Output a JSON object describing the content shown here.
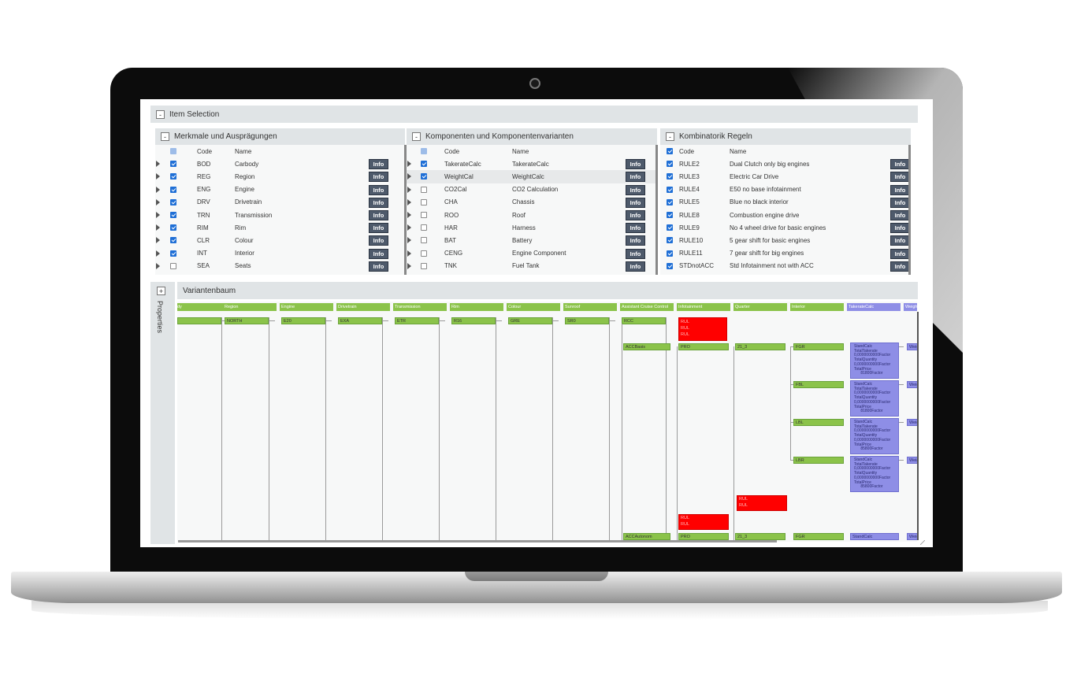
{
  "item_selection": {
    "title": "Item Selection",
    "toggle": "-"
  },
  "features": {
    "title": "Merkmale und Ausprägungen",
    "toggle": "-",
    "header": {
      "code": "Code",
      "name": "Name"
    },
    "rows": [
      {
        "code": "BOD",
        "name": "Carbody",
        "checked": true,
        "info": "Info"
      },
      {
        "code": "REG",
        "name": "Region",
        "checked": true,
        "info": "Info"
      },
      {
        "code": "ENG",
        "name": "Engine",
        "checked": true,
        "info": "Info"
      },
      {
        "code": "DRV",
        "name": "Drivetrain",
        "checked": true,
        "info": "Info"
      },
      {
        "code": "TRN",
        "name": "Transmission",
        "checked": true,
        "info": "Info"
      },
      {
        "code": "RIM",
        "name": "Rim",
        "checked": true,
        "info": "Info"
      },
      {
        "code": "CLR",
        "name": "Colour",
        "checked": true,
        "info": "Info"
      },
      {
        "code": "INT",
        "name": "Interior",
        "checked": true,
        "info": "Info"
      },
      {
        "code": "SEA",
        "name": "Seats",
        "checked": false,
        "info": "Info"
      }
    ]
  },
  "components": {
    "title": "Komponenten und Komponentenvarianten",
    "toggle": "-",
    "header": {
      "code": "Code",
      "name": "Name"
    },
    "rows": [
      {
        "code": "TakerateCalc",
        "name": "TakerateCalc",
        "checked": true,
        "info": "Info"
      },
      {
        "code": "WeightCal",
        "name": "WeightCalc",
        "checked": true,
        "info": "Info"
      },
      {
        "code": "CO2Cal",
        "name": "CO2 Calculation",
        "checked": false,
        "info": "Info"
      },
      {
        "code": "CHA",
        "name": "Chassis",
        "checked": false,
        "info": "Info"
      },
      {
        "code": "ROO",
        "name": "Roof",
        "checked": false,
        "info": "Info"
      },
      {
        "code": "HAR",
        "name": "Harness",
        "checked": false,
        "info": "Info"
      },
      {
        "code": "BAT",
        "name": "Battery",
        "checked": false,
        "info": "Info"
      },
      {
        "code": "CENG",
        "name": "Engine Component",
        "checked": false,
        "info": "Info"
      },
      {
        "code": "TNK",
        "name": "Fuel Tank",
        "checked": false,
        "info": "Info"
      }
    ]
  },
  "rules": {
    "title": "Kombinatorik Regeln",
    "toggle": "-",
    "header": {
      "code": "Code",
      "name": "Name"
    },
    "rows": [
      {
        "code": "RULE2",
        "name": "Dual Clutch only big engines",
        "checked": true,
        "info": "Info"
      },
      {
        "code": "RULE3",
        "name": "Electric Car Drive",
        "checked": true,
        "info": "Info"
      },
      {
        "code": "RULE4",
        "name": "E50 no base infotainment",
        "checked": true,
        "info": "Info"
      },
      {
        "code": "RULE5",
        "name": "Blue no black interior",
        "checked": true,
        "info": "Info"
      },
      {
        "code": "RULE8",
        "name": "Combustion engine drive",
        "checked": true,
        "info": "Info"
      },
      {
        "code": "RULE9",
        "name": "No 4 wheel drive for basic engines",
        "checked": true,
        "info": "Info"
      },
      {
        "code": "RULE10",
        "name": "5 gear shift for basic engines",
        "checked": true,
        "info": "Info"
      },
      {
        "code": "RULE11",
        "name": "7 gear shift for big engines",
        "checked": true,
        "info": "Info"
      },
      {
        "code": "STDnotACC",
        "name": "Std Infotainment not with ACC",
        "checked": true,
        "info": "Info"
      }
    ]
  },
  "properties": {
    "toggle": "+",
    "label": "Properties"
  },
  "tree": {
    "title": "Variantenbaum",
    "columns": [
      "dy",
      "Region",
      "Engine",
      "Drivetrain",
      "Transmission",
      "Rim",
      "Colour",
      "Sunroof",
      "Assistant Cruise Control",
      "Infotainment",
      "Quarter",
      "Interior",
      "TakerateCalc",
      "Weight"
    ],
    "colors": {
      "feature": "#8bc34a",
      "component": "#8e8ee6",
      "rule_violation": "#ff0000"
    },
    "first_row": [
      "",
      "NORTH",
      "E20",
      "EXA",
      "ETR",
      "R16",
      "GRE",
      "SR0",
      "RCC"
    ],
    "acc_rows": [
      {
        "acc": "ACCBasis",
        "info": "PRO",
        "quarter": "21_3",
        "interior": "FGR"
      },
      {
        "interior": "FBL"
      },
      {
        "interior": "LBL"
      },
      {
        "interior": "LBR"
      }
    ],
    "bottom_row": {
      "acc": "ACCAutonom",
      "info": "PRO",
      "quarter": "21_3",
      "interior": "FGR",
      "calc": "StandCalc",
      "weight": "Weig"
    },
    "calc_blocks": [
      {
        "lines": "StandCalc\nTotalTakerate\n0,0000000000Factor\nTotalQuantity\n0,0000000000Factor\nTotalPrice\n      81800Factor"
      },
      {
        "lines": "StandCalc\nTotalTakerate\n0,0000000000Factor\nTotalQuantity\n0,0000000000Factor\nTotalPrice\n      81800Factor"
      },
      {
        "lines": "StandCalc\nTotalTakerate\n0,0000000000Factor\nTotalQuantity\n0,0000000000Factor\nTotalPrice\n      85800Factor"
      },
      {
        "lines": "StandCalc\nTotalTakerate\n0,0000000000Factor\nTotalQuantity\n0,0000000000Factor\nTotalPrice\n      85800Factor"
      }
    ],
    "weight_label": "Weig"
  }
}
